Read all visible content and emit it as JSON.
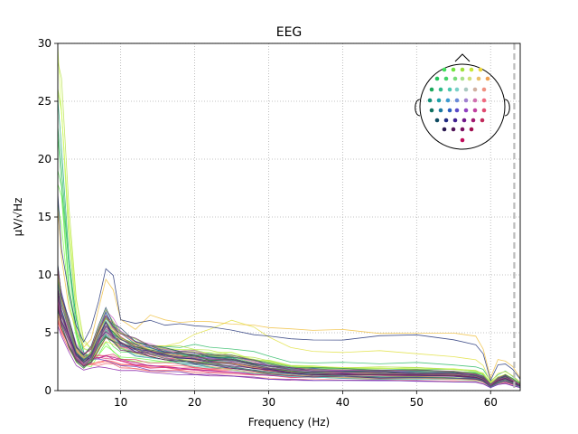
{
  "chart_data": {
    "type": "line",
    "title": "EEG",
    "xlabel": "Frequency (Hz)",
    "ylabel": "µV/√Hz",
    "xlim": [
      1.5,
      64
    ],
    "ylim": [
      0,
      30
    ],
    "xticks": [
      10,
      20,
      30,
      40,
      50,
      60
    ],
    "yticks": [
      0,
      5,
      10,
      15,
      20,
      25,
      30
    ],
    "grid": true,
    "grid_style": "dotted",
    "vline": {
      "x": 63.2,
      "style": "dashed",
      "color": "#bbbbbb"
    },
    "inset": "sensor-layout head map (top-right)",
    "n_channels": 59,
    "series_template": {
      "x": [
        1.5,
        2,
        3,
        4,
        5,
        6,
        7,
        8,
        9,
        10,
        12,
        14,
        16,
        18,
        20,
        22,
        25,
        28,
        30,
        33,
        36,
        40,
        45,
        50,
        55,
        58,
        59,
        60,
        61,
        62,
        63,
        64
      ],
      "frontal_high": [
        30,
        27,
        15,
        8,
        4.2,
        3.8,
        5.2,
        6.5,
        5.6,
        4.6,
        4.1,
        3.8,
        3.6,
        3.4,
        3.2,
        3.0,
        2.8,
        2.4,
        2.2,
        1.9,
        1.8,
        1.8,
        1.75,
        1.7,
        1.6,
        1.5,
        1.3,
        0.6,
        1.0,
        1.2,
        0.9,
        0.5
      ],
      "typical": [
        9,
        7,
        5,
        3.2,
        2.6,
        3.1,
        4.6,
        5.8,
        5.0,
        4.3,
        3.7,
        3.3,
        3.0,
        2.8,
        2.6,
        2.4,
        2.2,
        1.9,
        1.7,
        1.5,
        1.4,
        1.35,
        1.3,
        1.25,
        1.2,
        1.1,
        0.9,
        0.4,
        0.8,
        1.0,
        0.7,
        0.4
      ],
      "low": [
        7,
        5.8,
        4.2,
        2.9,
        2.4,
        2.5,
        2.6,
        2.6,
        2.5,
        2.3,
        2.1,
        1.9,
        1.8,
        1.7,
        1.6,
        1.5,
        1.4,
        1.3,
        1.2,
        1.1,
        1.05,
        1.0,
        1.0,
        0.95,
        0.9,
        0.85,
        0.7,
        0.3,
        0.6,
        0.7,
        0.5,
        0.3
      ],
      "highlight_bump": [
        12,
        9,
        6,
        4,
        3,
        3.2,
        4.5,
        5.5,
        5.0,
        4.7,
        4.6,
        4.5,
        4.5,
        4.6,
        4.9,
        5.3,
        6.0,
        5.6,
        4.6,
        3.8,
        3.5,
        3.4,
        3.3,
        3.2,
        3.0,
        2.6,
        2.0,
        0.7,
        1.5,
        1.6,
        1.2,
        0.7
      ],
      "outlier_high": [
        15,
        11,
        7,
        5,
        3.5,
        4.5,
        7.0,
        8.8,
        8.3,
        5.5,
        5.0,
        5.4,
        5.1,
        5.0,
        4.8,
        4.7,
        4.5,
        4.3,
        4.0,
        3.8,
        3.7,
        3.7,
        3.8,
        3.9,
        3.9,
        3.5,
        2.6,
        0.8,
        1.9,
        2.0,
        1.5,
        0.8
      ]
    },
    "channel_colors": [
      "#7fff3f",
      "#66ee44",
      "#55dd55",
      "#3fcc55",
      "#2fbb66",
      "#22aa77",
      "#a8e84a",
      "#c0f070",
      "#d8ff60",
      "#b7e04a",
      "#e0e040",
      "#f0c040",
      "#ffb060",
      "#ffa080",
      "#ff8080",
      "#ff7070",
      "#ff6066",
      "#ee5566",
      "#e04466",
      "#dd3377",
      "#cc2288",
      "#aa2299",
      "#8822aa",
      "#6633bb",
      "#4444bb",
      "#3355aa",
      "#226699",
      "#227788",
      "#228877",
      "#33aa66",
      "#44bb99",
      "#55ccbb",
      "#66ddcc",
      "#77cccc",
      "#88aacc",
      "#9988cc",
      "#b070d0",
      "#cc66cc",
      "#dd66aa",
      "#ee6688",
      "#ff7766",
      "#ff9966",
      "#ffbb66",
      "#ddcc55",
      "#aacc55",
      "#88cc55",
      "#55aa44",
      "#338844",
      "#226633",
      "#224466",
      "#223377",
      "#332288",
      "#442277",
      "#552266",
      "#662255",
      "#773366",
      "#884477",
      "#995588",
      "#446688"
    ],
    "topomap_colors": [
      "#3fe05a",
      "#6ee43c",
      "#9ee03a",
      "#c8e838",
      "#ecd83c",
      "#22c45a",
      "#44d46a",
      "#78dc7a",
      "#a8e08a",
      "#cfe07a",
      "#eac06a",
      "#f0a050",
      "#1aa85c",
      "#2fba8a",
      "#4cc8b0",
      "#7ad0c8",
      "#a8c8c0",
      "#d0b0a0",
      "#f09080",
      "#12907a",
      "#1fa0a8",
      "#3c9ad0",
      "#6a8ad8",
      "#a080d0",
      "#d070b0",
      "#f06a80",
      "#107060",
      "#1a78a0",
      "#2a5ec0",
      "#5a4ac8",
      "#9040c0",
      "#c040a0",
      "#e04a70",
      "#0e4a60",
      "#202a80",
      "#402090",
      "#70188a",
      "#a01870",
      "#c02a5a",
      "#2a1a50",
      "#501458",
      "#781060",
      "#a01050",
      "#c00c5a"
    ]
  }
}
